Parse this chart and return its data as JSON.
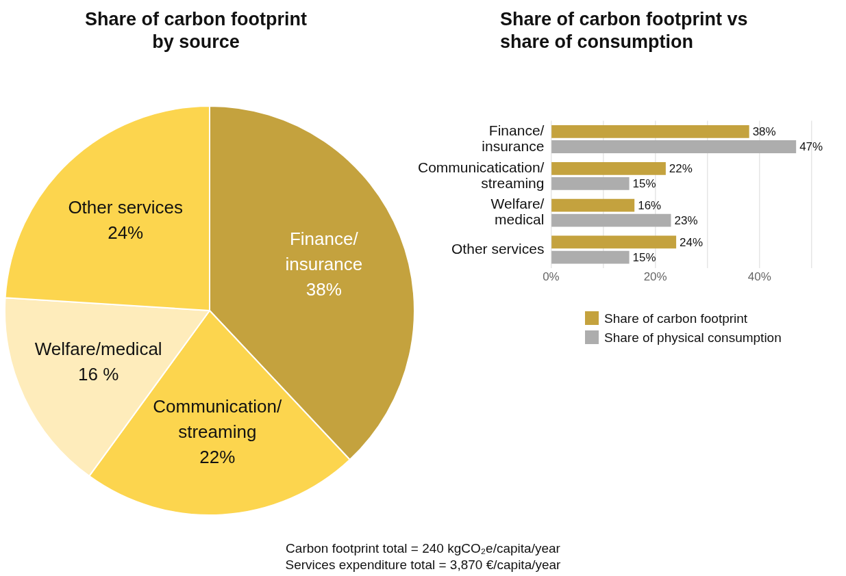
{
  "chart_data": [
    {
      "type": "pie",
      "title": "Share of carbon footprint\nby source",
      "categories": [
        "Finance/\ninsurance",
        "Communication/\nstreaming",
        "Welfare/medical",
        "Other services"
      ],
      "values": [
        38,
        22,
        16,
        24
      ],
      "colors": [
        "#c4a23e",
        "#fcd54e",
        "#feecbb",
        "#fcd54e"
      ],
      "value_labels": [
        "38%",
        "22%",
        "16 %",
        "24%"
      ],
      "annotations": [
        "Carbon footprint total = 240 kgCO₂e/capita/year",
        "Services expenditure total = 3,870 €/capita/year"
      ]
    },
    {
      "type": "bar",
      "orientation": "horizontal",
      "title": "Share of carbon footprint vs\nshare of consumption",
      "categories": [
        "Finance/\ninsurance",
        "Communicatication/\nstreaming",
        "Welfare/\nmedical",
        "Other services"
      ],
      "series": [
        {
          "name": "Share of carbon footprint",
          "color": "#c4a23e",
          "values": [
            38,
            22,
            16,
            24
          ],
          "value_labels": [
            "38%",
            "22%",
            "16%",
            "24%"
          ]
        },
        {
          "name": "Share of physical consumption",
          "color": "#adadad",
          "values": [
            47,
            15,
            23,
            15
          ],
          "value_labels": [
            "47%",
            "15%",
            "23%",
            "15%"
          ]
        }
      ],
      "xlim": [
        0,
        50
      ],
      "xticks": [
        {
          "value": 0,
          "label": "0%"
        },
        {
          "value": 10,
          "label": null
        },
        {
          "value": 20,
          "label": "20%"
        },
        {
          "value": 30,
          "label": null
        },
        {
          "value": 40,
          "label": "40%"
        },
        {
          "value": 50,
          "label": null
        }
      ],
      "grid": "x",
      "legend": "bottom"
    }
  ]
}
